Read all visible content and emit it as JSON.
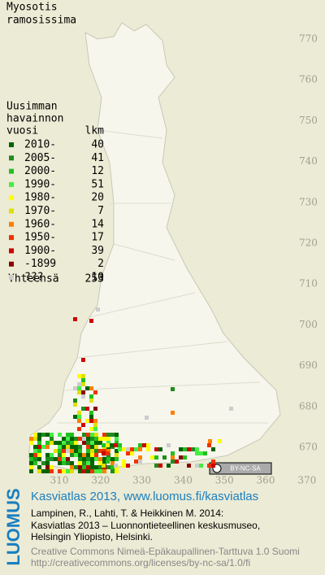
{
  "title_lines": [
    "Myosotis",
    "ramosissima"
  ],
  "legend": {
    "heading_lines": [
      "Uusimman",
      "havainnon",
      "vuosi"
    ],
    "count_header": "lkm",
    "rows": [
      {
        "label": "2010-",
        "count": "40",
        "color": "#006400"
      },
      {
        "label": "2005-",
        "count": "41",
        "color": "#1e8c1e"
      },
      {
        "label": "2000-",
        "count": "12",
        "color": "#22c022"
      },
      {
        "label": "1990-",
        "count": "51",
        "color": "#44ee44"
      },
      {
        "label": "1980-",
        "count": "20",
        "color": "#ffff00"
      },
      {
        "label": "1970-",
        "count": "7",
        "color": "#e0e000"
      },
      {
        "label": "1960-",
        "count": "14",
        "color": "#ff8000"
      },
      {
        "label": "1950-",
        "count": "17",
        "color": "#ee3300"
      },
      {
        "label": "1900-",
        "count": "39",
        "color": "#cc0000"
      },
      {
        "label": "-1899",
        "count": "2",
        "color": "#8b0000"
      },
      {
        "label": "???",
        "count": "10",
        "color": "#cccccc"
      }
    ],
    "total_label": "Yhteensä",
    "total": "253"
  },
  "grid": {
    "y_labels": [
      "770",
      "760",
      "750",
      "740",
      "730",
      "720",
      "710",
      "700",
      "690",
      "680",
      "670"
    ],
    "x_labels": [
      "310",
      "320",
      "330",
      "340",
      "350",
      "360",
      "370"
    ]
  },
  "badge": "BY-NC-SA",
  "footer": {
    "brand": "LUOMUS",
    "link": "Kasviatlas 2013, www.luomus.fi/kasviatlas",
    "citation_lines": [
      "Lampinen, R., Lahti, T. & Heikkinen M. 2014:",
      "Kasviatlas 2013 – Luonnontieteellinen keskusmuseo,",
      "Helsingin Yliopisto, Helsinki."
    ],
    "license_lines": [
      "Creative Commons Nimeä-Epäkaupallinen-Tarttuva 1.0 Suomi",
      "http://creativecommons.org/licenses/by-nc-sa/1.0/fi"
    ]
  }
}
